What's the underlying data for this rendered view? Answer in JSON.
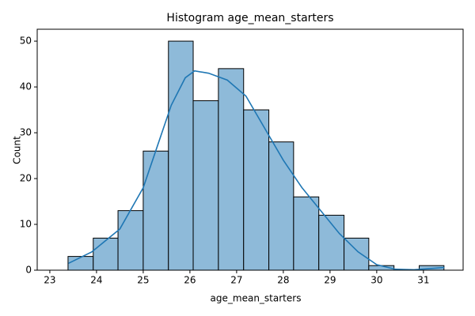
{
  "chart_data": {
    "type": "histogram",
    "title": "Histogram age_mean_starters",
    "x_label": "age_mean_starters",
    "y_label": "Count",
    "bins": [
      23.39,
      23.93,
      24.46,
      25.0,
      25.54,
      26.07,
      26.61,
      27.15,
      27.69,
      28.22,
      28.76,
      29.3,
      29.83,
      30.37,
      30.91,
      31.44
    ],
    "values": [
      3,
      7,
      13,
      26,
      50,
      37,
      44,
      35,
      28,
      16,
      12,
      7,
      1,
      0,
      1
    ],
    "color": "#8ebad9",
    "edge_color": "#000000",
    "kde": {
      "color": "#1f77b4",
      "x": [
        23.4,
        23.9,
        24.5,
        25.0,
        25.3,
        25.6,
        25.9,
        26.1,
        26.4,
        26.8,
        27.2,
        27.6,
        28.0,
        28.4,
        28.8,
        29.2,
        29.6,
        30.0,
        30.4,
        30.8,
        31.2,
        31.45
      ],
      "values": [
        1.5,
        4,
        9,
        18,
        27,
        36,
        42,
        43.5,
        43,
        41.5,
        38,
        31,
        24,
        18,
        13,
        8,
        4,
        1.2,
        0.2,
        0.1,
        0.4,
        0.6
      ]
    },
    "xlim": [
      22.73,
      31.85
    ],
    "ylim": [
      0,
      52.6
    ],
    "xticks": [
      23,
      24,
      25,
      26,
      27,
      28,
      29,
      30,
      31
    ],
    "yticks": [
      0,
      10,
      20,
      30,
      40,
      50
    ]
  }
}
